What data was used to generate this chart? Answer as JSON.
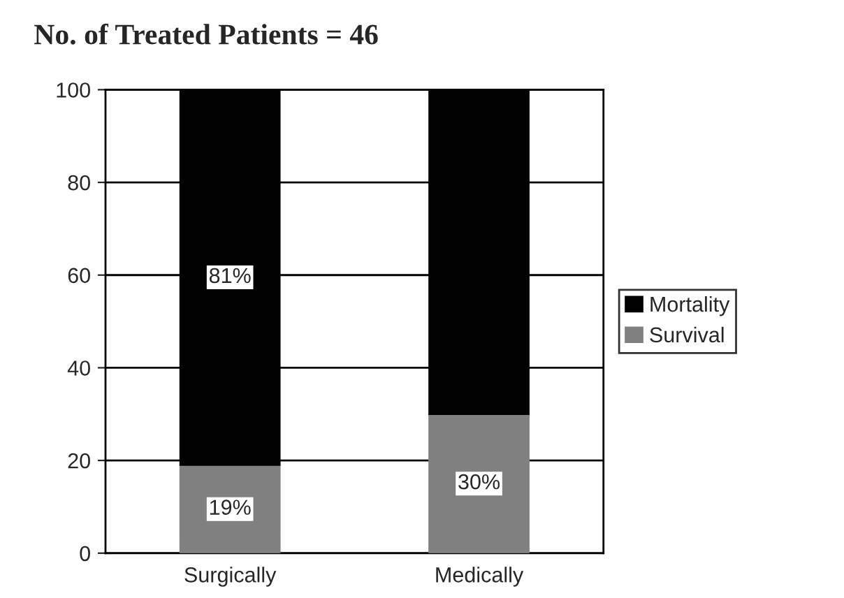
{
  "chart_data": {
    "type": "bar",
    "title": "No. of Treated Patients = 46",
    "categories": [
      "Surgically",
      "Medically"
    ],
    "stacked": true,
    "series": [
      {
        "name": "Survival",
        "color": "#808080",
        "values": [
          19,
          30
        ],
        "value_labels": [
          "19%",
          "30%"
        ]
      },
      {
        "name": "Mortality",
        "color": "#000000",
        "values": [
          81,
          70
        ],
        "value_labels": [
          "81%",
          null
        ]
      }
    ],
    "ylim": [
      0,
      100
    ],
    "yticks": [
      0,
      20,
      40,
      60,
      80,
      100
    ],
    "grid": "y",
    "legend": "right"
  }
}
